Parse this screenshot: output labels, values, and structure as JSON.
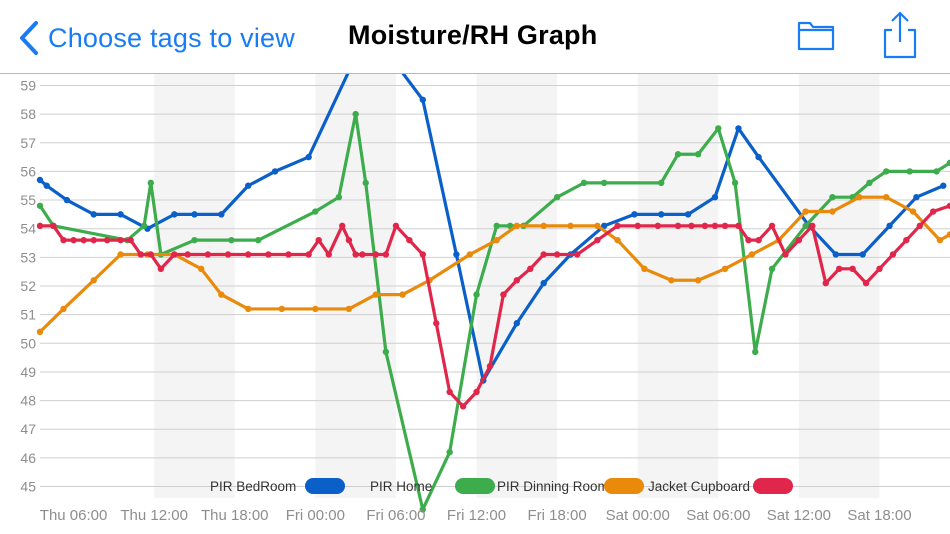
{
  "nav": {
    "back_label": "Choose tags to view",
    "title": "Moisture/RH Graph",
    "accent_color": "#1a7cf5",
    "folder_icon": "folder-icon",
    "share_icon": "share-icon"
  },
  "chart_data": {
    "type": "line",
    "title": "",
    "xlabel": "",
    "ylabel": "",
    "ylim": [
      44.6,
      59.4
    ],
    "xlim": [
      "Thu 03:30",
      "Sat 23:15"
    ],
    "grid": true,
    "y_ticks": [
      45,
      46,
      47,
      48,
      49,
      50,
      51,
      52,
      53,
      54,
      55,
      56,
      57,
      58,
      59
    ],
    "x_tick_labels": [
      "Thu 06:00",
      "Thu 12:00",
      "Thu 18:00",
      "Fri 00:00",
      "Fri 06:00",
      "Fri 12:00",
      "Fri 18:00",
      "Sat 00:00",
      "Sat 06:00",
      "Sat 12:00",
      "Sat 18:00"
    ],
    "legend_position": "bottom",
    "series": [
      {
        "name": "PIR BedRoom",
        "color": "#0a60c8",
        "x": [
          "Thu 03:30",
          "Thu 04:00",
          "Thu 05:30",
          "Thu 07:30",
          "Thu 09:30",
          "Thu 11:30",
          "Thu 13:30",
          "Thu 15:00",
          "Thu 17:00",
          "Thu 19:00",
          "Thu 21:00",
          "Thu 23:30",
          "Fri 04:00",
          "Fri 08:00",
          "Fri 10:30",
          "Fri 12:30",
          "Fri 15:00",
          "Fri 17:00",
          "Fri 19:00",
          "Fri 21:30",
          "Fri 23:45",
          "Sat 01:45",
          "Sat 03:45",
          "Sat 05:45",
          "Sat 07:30",
          "Sat 09:00",
          "Sat 12:45",
          "Sat 14:45",
          "Sat 16:45",
          "Sat 18:45",
          "Sat 20:45",
          "Sat 22:45"
        ],
        "y": [
          55.7,
          55.5,
          55.0,
          54.5,
          54.5,
          54.0,
          54.5,
          54.5,
          54.5,
          55.5,
          56.0,
          56.5,
          61.0,
          58.5,
          53.1,
          48.7,
          50.7,
          52.1,
          53.1,
          54.1,
          54.5,
          54.5,
          54.5,
          55.1,
          57.5,
          56.5,
          54.1,
          53.1,
          53.1,
          54.1,
          55.1,
          55.5
        ]
      },
      {
        "name": "PIR Home",
        "color": "#3dac4c",
        "x": [
          "Thu 03:30",
          "Thu 04:30",
          "Thu 10:00",
          "Thu 11:15",
          "Thu 11:45",
          "Thu 12:30",
          "Thu 15:00",
          "Thu 17:45",
          "Thu 19:45",
          "Fri 00:00",
          "Fri 01:45",
          "Fri 03:00",
          "Fri 03:45",
          "Fri 05:15",
          "Fri 08:00",
          "Fri 10:00",
          "Fri 12:00",
          "Fri 13:30",
          "Fri 14:30",
          "Fri 15:30",
          "Fri 18:00",
          "Fri 20:00",
          "Fri 21:30",
          "Sat 01:45",
          "Sat 03:00",
          "Sat 04:30",
          "Sat 06:00",
          "Sat 07:15",
          "Sat 08:45",
          "Sat 10:00",
          "Sat 12:30",
          "Sat 14:30",
          "Sat 16:00",
          "Sat 17:15",
          "Sat 18:30",
          "Sat 20:15",
          "Sat 22:15",
          "Sat 23:15"
        ],
        "y": [
          54.8,
          54.1,
          53.6,
          54.1,
          55.6,
          53.1,
          53.6,
          53.6,
          53.6,
          54.6,
          55.1,
          58.0,
          55.6,
          49.7,
          44.2,
          46.2,
          51.7,
          54.1,
          54.1,
          54.1,
          55.1,
          55.6,
          55.6,
          55.6,
          56.6,
          56.6,
          57.5,
          55.6,
          49.7,
          52.6,
          54.1,
          55.1,
          55.1,
          55.6,
          56.0,
          56.0,
          56.0,
          56.3
        ]
      },
      {
        "name": "PIR Dinning Room",
        "color": "#ea8a0b",
        "x": [
          "Thu 03:30",
          "Thu 05:15",
          "Thu 07:30",
          "Thu 09:30",
          "Thu 11:30",
          "Thu 13:30",
          "Thu 15:30",
          "Thu 17:00",
          "Thu 19:00",
          "Thu 21:30",
          "Fri 00:00",
          "Fri 02:30",
          "Fri 04:30",
          "Fri 06:30",
          "Fri 08:30",
          "Fri 11:30",
          "Fri 13:30",
          "Fri 15:00",
          "Fri 17:00",
          "Fri 19:00",
          "Fri 21:00",
          "Fri 22:30",
          "Sat 00:30",
          "Sat 02:30",
          "Sat 04:30",
          "Sat 06:30",
          "Sat 08:30",
          "Sat 10:30",
          "Sat 12:30",
          "Sat 14:30",
          "Sat 16:30",
          "Sat 18:30",
          "Sat 20:30",
          "Sat 22:30",
          "Sat 23:15"
        ],
        "y": [
          50.4,
          51.2,
          52.2,
          53.1,
          53.1,
          53.1,
          52.6,
          51.7,
          51.2,
          51.2,
          51.2,
          51.2,
          51.7,
          51.7,
          52.2,
          53.1,
          53.6,
          54.1,
          54.1,
          54.1,
          54.1,
          53.6,
          52.6,
          52.2,
          52.2,
          52.6,
          53.1,
          53.6,
          54.6,
          54.6,
          55.1,
          55.1,
          54.6,
          53.6,
          53.8
        ]
      },
      {
        "name": "Jacket Cupboard",
        "color": "#e0274b",
        "x": [
          "Thu 03:30",
          "Thu 04:30",
          "Thu 05:15",
          "Thu 06:00",
          "Thu 06:45",
          "Thu 07:30",
          "Thu 08:30",
          "Thu 09:30",
          "Thu 10:15",
          "Thu 11:00",
          "Thu 11:45",
          "Thu 12:30",
          "Thu 13:30",
          "Thu 14:30",
          "Thu 16:00",
          "Thu 17:30",
          "Thu 19:00",
          "Thu 20:30",
          "Thu 22:00",
          "Thu 23:30",
          "Fri 00:15",
          "Fri 01:00",
          "Fri 02:00",
          "Fri 02:30",
          "Fri 03:00",
          "Fri 03:30",
          "Fri 04:30",
          "Fri 05:15",
          "Fri 06:00",
          "Fri 07:00",
          "Fri 08:00",
          "Fri 09:00",
          "Fri 10:00",
          "Fri 11:00",
          "Fri 12:00",
          "Fri 13:00",
          "Fri 14:00",
          "Fri 15:00",
          "Fri 16:00",
          "Fri 17:00",
          "Fri 18:00",
          "Fri 19:30",
          "Fri 21:00",
          "Fri 22:30",
          "Sat 00:00",
          "Sat 01:30",
          "Sat 03:00",
          "Sat 04:00",
          "Sat 05:00",
          "Sat 05:45",
          "Sat 06:30",
          "Sat 07:30",
          "Sat 08:15",
          "Sat 09:00",
          "Sat 10:00",
          "Sat 11:00",
          "Sat 12:00",
          "Sat 13:00",
          "Sat 14:00",
          "Sat 15:00",
          "Sat 16:00",
          "Sat 17:00",
          "Sat 18:00",
          "Sat 19:00",
          "Sat 20:00",
          "Sat 21:00",
          "Sat 22:00",
          "Sat 23:15"
        ],
        "y": [
          54.1,
          54.1,
          53.6,
          53.6,
          53.6,
          53.6,
          53.6,
          53.6,
          53.6,
          53.1,
          53.1,
          52.6,
          53.1,
          53.1,
          53.1,
          53.1,
          53.1,
          53.1,
          53.1,
          53.1,
          53.6,
          53.1,
          54.1,
          53.6,
          53.1,
          53.1,
          53.1,
          53.1,
          54.1,
          53.6,
          53.1,
          50.7,
          48.3,
          47.8,
          48.3,
          49.2,
          51.7,
          52.2,
          52.6,
          53.1,
          53.1,
          53.1,
          53.6,
          54.1,
          54.1,
          54.1,
          54.1,
          54.1,
          54.1,
          54.1,
          54.1,
          54.1,
          53.6,
          53.6,
          54.1,
          53.1,
          53.6,
          54.1,
          52.1,
          52.6,
          52.6,
          52.1,
          52.6,
          53.1,
          53.6,
          54.1,
          54.6,
          54.8
        ]
      }
    ]
  }
}
